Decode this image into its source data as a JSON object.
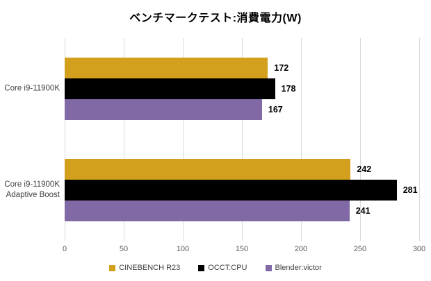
{
  "chart_data": {
    "type": "bar",
    "orientation": "horizontal",
    "title": "ベンチマークテスト:消費電力(W)",
    "categories": [
      "Core i9-11900K",
      "Core i9-11900K\nAdaptive Boost"
    ],
    "series": [
      {
        "name": "CINEBENCH R23",
        "color": "#D2A01D",
        "values": [
          172,
          242
        ]
      },
      {
        "name": "OCCT:CPU",
        "color": "#000000",
        "values": [
          178,
          281
        ]
      },
      {
        "name": "Blender:victor",
        "color": "#8169A5",
        "values": [
          167,
          241
        ]
      }
    ],
    "xlim": [
      0,
      300
    ],
    "x_ticks": [
      0,
      50,
      100,
      150,
      200,
      250,
      300
    ],
    "grid": "vertical",
    "legend_position": "bottom",
    "gridline_color": "#D9D9D9",
    "tick_label_color": "#595959",
    "category_label_color": "#404040",
    "value_label_color": "#000000",
    "background_color": "#FFFFFF"
  }
}
